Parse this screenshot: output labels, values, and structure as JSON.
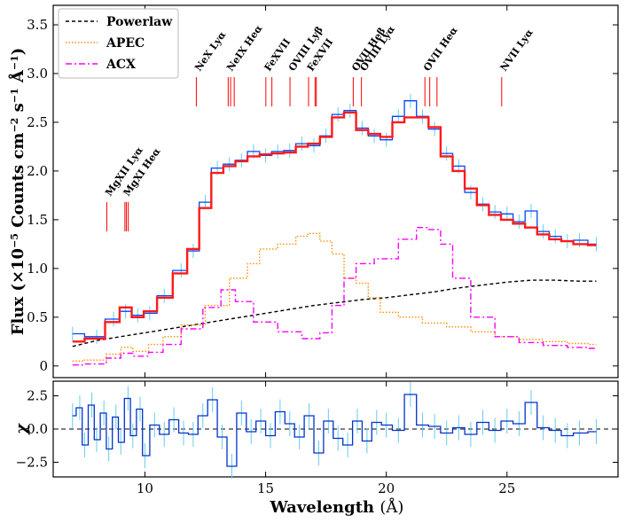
{
  "chart_data": [
    {
      "type": "line",
      "panel": "spectrum",
      "ylabel_html": "Flux (×10<tspan baseline-shift='super' font-size='11'>−5</tspan> Counts cm<tspan baseline-shift='super' font-size='11'>−2</tspan> s<tspan baseline-shift='super' font-size='11'>−1</tspan> Å<tspan baseline-shift='super' font-size='11'>−1</tspan>)",
      "xlim": [
        6.2,
        29.6
      ],
      "ylim": [
        -0.12,
        3.7
      ],
      "xticks": [
        10,
        15,
        20,
        25
      ],
      "yticks": [
        0,
        0.5,
        1.0,
        1.5,
        2.0,
        2.5,
        3.0,
        3.5
      ],
      "ytick_labels": [
        "0",
        "0.5",
        "1.0",
        "1.5",
        "2.0",
        "2.5",
        "3.0",
        "3.5"
      ],
      "legend": {
        "position": "top-left",
        "entries": [
          {
            "label": "Powerlaw",
            "color": "#000000",
            "dash": "4,3"
          },
          {
            "label": "APEC",
            "color": "#ff8c00",
            "dash": "1.5,2"
          },
          {
            "label": "ACX",
            "color": "#ff00ff",
            "dash": "7,3,2,3"
          }
        ]
      },
      "series": [
        {
          "name": "Powerlaw",
          "color": "#000000",
          "x": [
            7.0,
            8.0,
            9.0,
            10.0,
            11.0,
            12.0,
            13.0,
            14.0,
            15.0,
            16.0,
            17.0,
            18.0,
            19.0,
            20.0,
            21.0,
            22.0,
            23.0,
            24.0,
            25.0,
            26.0,
            27.0,
            28.0,
            28.7
          ],
          "y": [
            0.2,
            0.26,
            0.3,
            0.34,
            0.38,
            0.42,
            0.46,
            0.5,
            0.54,
            0.58,
            0.62,
            0.65,
            0.68,
            0.7,
            0.73,
            0.76,
            0.8,
            0.83,
            0.86,
            0.88,
            0.88,
            0.87,
            0.87
          ]
        },
        {
          "name": "APEC",
          "color": "#ff8c00",
          "x": [
            7.0,
            8.0,
            8.8,
            9.2,
            9.8,
            10.5,
            11.0,
            12.0,
            13.0,
            14.0,
            14.5,
            15.0,
            16.0,
            16.5,
            17.0,
            17.5,
            18.0,
            18.5,
            19.0,
            19.5,
            20.0,
            21.0,
            22.0,
            23.0,
            24.0,
            25.0,
            26.0,
            27.0,
            28.0,
            28.7
          ],
          "y": [
            0.05,
            0.06,
            0.12,
            0.19,
            0.15,
            0.22,
            0.3,
            0.42,
            0.62,
            0.9,
            1.05,
            1.2,
            1.25,
            1.33,
            1.36,
            1.28,
            1.15,
            0.9,
            0.85,
            0.7,
            0.55,
            0.5,
            0.44,
            0.4,
            0.35,
            0.3,
            0.27,
            0.25,
            0.23,
            0.22
          ]
        },
        {
          "name": "ACX",
          "color": "#ff00ff",
          "x": [
            7.0,
            8.0,
            8.8,
            9.2,
            9.8,
            10.5,
            11.0,
            12.0,
            12.8,
            13.5,
            14.0,
            15.0,
            16.0,
            17.0,
            17.5,
            18.0,
            18.5,
            19.0,
            20.0,
            21.0,
            21.5,
            22.0,
            22.5,
            23.0,
            24.0,
            25.0,
            26.0,
            27.0,
            28.0,
            28.7
          ],
          "y": [
            0.01,
            0.02,
            0.08,
            0.13,
            0.1,
            0.14,
            0.22,
            0.38,
            0.6,
            0.78,
            0.66,
            0.45,
            0.35,
            0.28,
            0.34,
            0.62,
            0.9,
            1.05,
            1.1,
            1.3,
            1.42,
            1.4,
            1.25,
            0.9,
            0.5,
            0.3,
            0.24,
            0.21,
            0.19,
            0.18
          ]
        },
        {
          "name": "model",
          "color": "#ff1a1a",
          "x": [
            7.0,
            8.0,
            8.7,
            9.2,
            9.7,
            10.2,
            10.8,
            11.5,
            12.0,
            12.5,
            13.0,
            13.5,
            14.0,
            14.5,
            15.0,
            15.5,
            16.0,
            16.5,
            17.0,
            17.5,
            18.0,
            18.5,
            19.0,
            19.5,
            20.0,
            20.5,
            21.0,
            21.5,
            22.0,
            22.5,
            23.0,
            23.5,
            24.0,
            24.5,
            25.0,
            25.5,
            26.0,
            26.5,
            27.0,
            27.5,
            28.0,
            28.7
          ],
          "y": [
            0.25,
            0.28,
            0.45,
            0.6,
            0.5,
            0.56,
            0.7,
            0.95,
            1.2,
            1.62,
            1.98,
            2.05,
            2.1,
            2.15,
            2.17,
            2.18,
            2.19,
            2.25,
            2.28,
            2.35,
            2.55,
            2.6,
            2.42,
            2.38,
            2.35,
            2.5,
            2.55,
            2.55,
            2.45,
            2.15,
            2.0,
            1.82,
            1.65,
            1.55,
            1.5,
            1.46,
            1.42,
            1.35,
            1.3,
            1.28,
            1.25,
            1.24
          ]
        },
        {
          "name": "data",
          "color": "#0044ff",
          "x": [
            7.0,
            8.0,
            8.7,
            9.2,
            9.7,
            10.2,
            10.8,
            11.5,
            12.0,
            12.5,
            13.0,
            13.5,
            14.0,
            14.5,
            15.0,
            15.5,
            16.0,
            16.5,
            17.0,
            17.5,
            18.0,
            18.5,
            19.0,
            19.5,
            20.0,
            20.5,
            21.0,
            21.5,
            22.0,
            22.5,
            23.0,
            23.5,
            24.0,
            24.5,
            25.0,
            25.5,
            26.0,
            26.5,
            27.0,
            27.5,
            28.0,
            28.7
          ],
          "y": [
            0.33,
            0.3,
            0.48,
            0.56,
            0.52,
            0.54,
            0.72,
            0.98,
            1.18,
            1.68,
            2.03,
            2.07,
            2.11,
            2.2,
            2.16,
            2.2,
            2.21,
            2.28,
            2.26,
            2.36,
            2.58,
            2.62,
            2.44,
            2.36,
            2.32,
            2.56,
            2.72,
            2.56,
            2.43,
            2.18,
            2.05,
            1.78,
            1.66,
            1.58,
            1.56,
            1.48,
            1.59,
            1.38,
            1.33,
            1.28,
            1.29,
            1.25
          ]
        }
      ],
      "line_markers": {
        "color": "#ff0000",
        "lines": [
          {
            "label": "MgXII Lyα",
            "x": 8.42
          },
          {
            "label": "MgXI Heα",
            "x": 9.17
          },
          {
            "label": "",
            "x": 9.23
          },
          {
            "label": "",
            "x": 9.31
          },
          {
            "label": "NeX Lyα",
            "x": 12.13
          },
          {
            "label": "NeIX Heα",
            "x": 13.45
          },
          {
            "label": "",
            "x": 13.55
          },
          {
            "label": "",
            "x": 13.7
          },
          {
            "label": "FeXVII",
            "x": 15.01
          },
          {
            "label": "",
            "x": 15.26
          },
          {
            "label": "OVIII Lyβ",
            "x": 16.01
          },
          {
            "label": "FeXVII",
            "x": 16.78
          },
          {
            "label": "",
            "x": 17.05
          },
          {
            "label": "",
            "x": 17.1
          },
          {
            "label": "OVII Heβ",
            "x": 18.63
          },
          {
            "label": "OVIII Lyα",
            "x": 18.97
          },
          {
            "label": "OVII Heα",
            "x": 21.6
          },
          {
            "label": "",
            "x": 21.8
          },
          {
            "label": "",
            "x": 22.1
          },
          {
            "label": "NVII Lyα",
            "x": 24.78
          }
        ]
      }
    },
    {
      "type": "line",
      "panel": "residuals",
      "ylabel": "χ",
      "xlabel_main": "Wavelength",
      "xlabel_unit": "(Å)",
      "xlim": [
        6.2,
        29.6
      ],
      "ylim": [
        -3.6,
        3.6
      ],
      "xticks": [
        10,
        15,
        20,
        25
      ],
      "yticks": [
        -2.5,
        0,
        2.5
      ],
      "ytick_labels": [
        "−2.5",
        "0.0",
        "2.5"
      ],
      "zero_line": 0,
      "series": [
        {
          "name": "residuals",
          "color": "#0033cc",
          "x": [
            7.0,
            7.3,
            7.5,
            7.8,
            8.0,
            8.3,
            8.5,
            8.8,
            9.0,
            9.3,
            9.5,
            9.8,
            10.0,
            10.4,
            10.8,
            11.2,
            11.6,
            12.0,
            12.4,
            12.8,
            13.2,
            13.6,
            14.0,
            14.4,
            14.8,
            15.2,
            15.6,
            16.0,
            16.4,
            16.8,
            17.2,
            17.6,
            18.0,
            18.4,
            18.8,
            19.2,
            19.6,
            20.0,
            20.5,
            21.0,
            21.5,
            22.0,
            22.5,
            23.0,
            23.5,
            24.0,
            24.5,
            25.0,
            25.5,
            26.0,
            26.5,
            27.0,
            27.5,
            28.0,
            28.7
          ],
          "y": [
            1.0,
            1.6,
            -1.2,
            1.8,
            -0.8,
            1.2,
            -1.5,
            0.9,
            -1.0,
            2.3,
            -0.5,
            1.5,
            -2.0,
            0.3,
            -0.4,
            0.7,
            -0.3,
            -0.4,
            1.0,
            2.2,
            -0.6,
            -2.8,
            1.2,
            -0.2,
            0.6,
            -0.5,
            1.3,
            0.4,
            -0.6,
            1.0,
            -1.8,
            0.6,
            -0.7,
            -1.2,
            0.6,
            -0.9,
            0.5,
            0.3,
            -0.1,
            2.6,
            0.3,
            0.2,
            -0.3,
            0.1,
            -0.4,
            0.5,
            -0.1,
            0.6,
            0.4,
            2.0,
            0.1,
            -0.1,
            -0.5,
            -0.3,
            -0.2
          ]
        }
      ]
    }
  ]
}
